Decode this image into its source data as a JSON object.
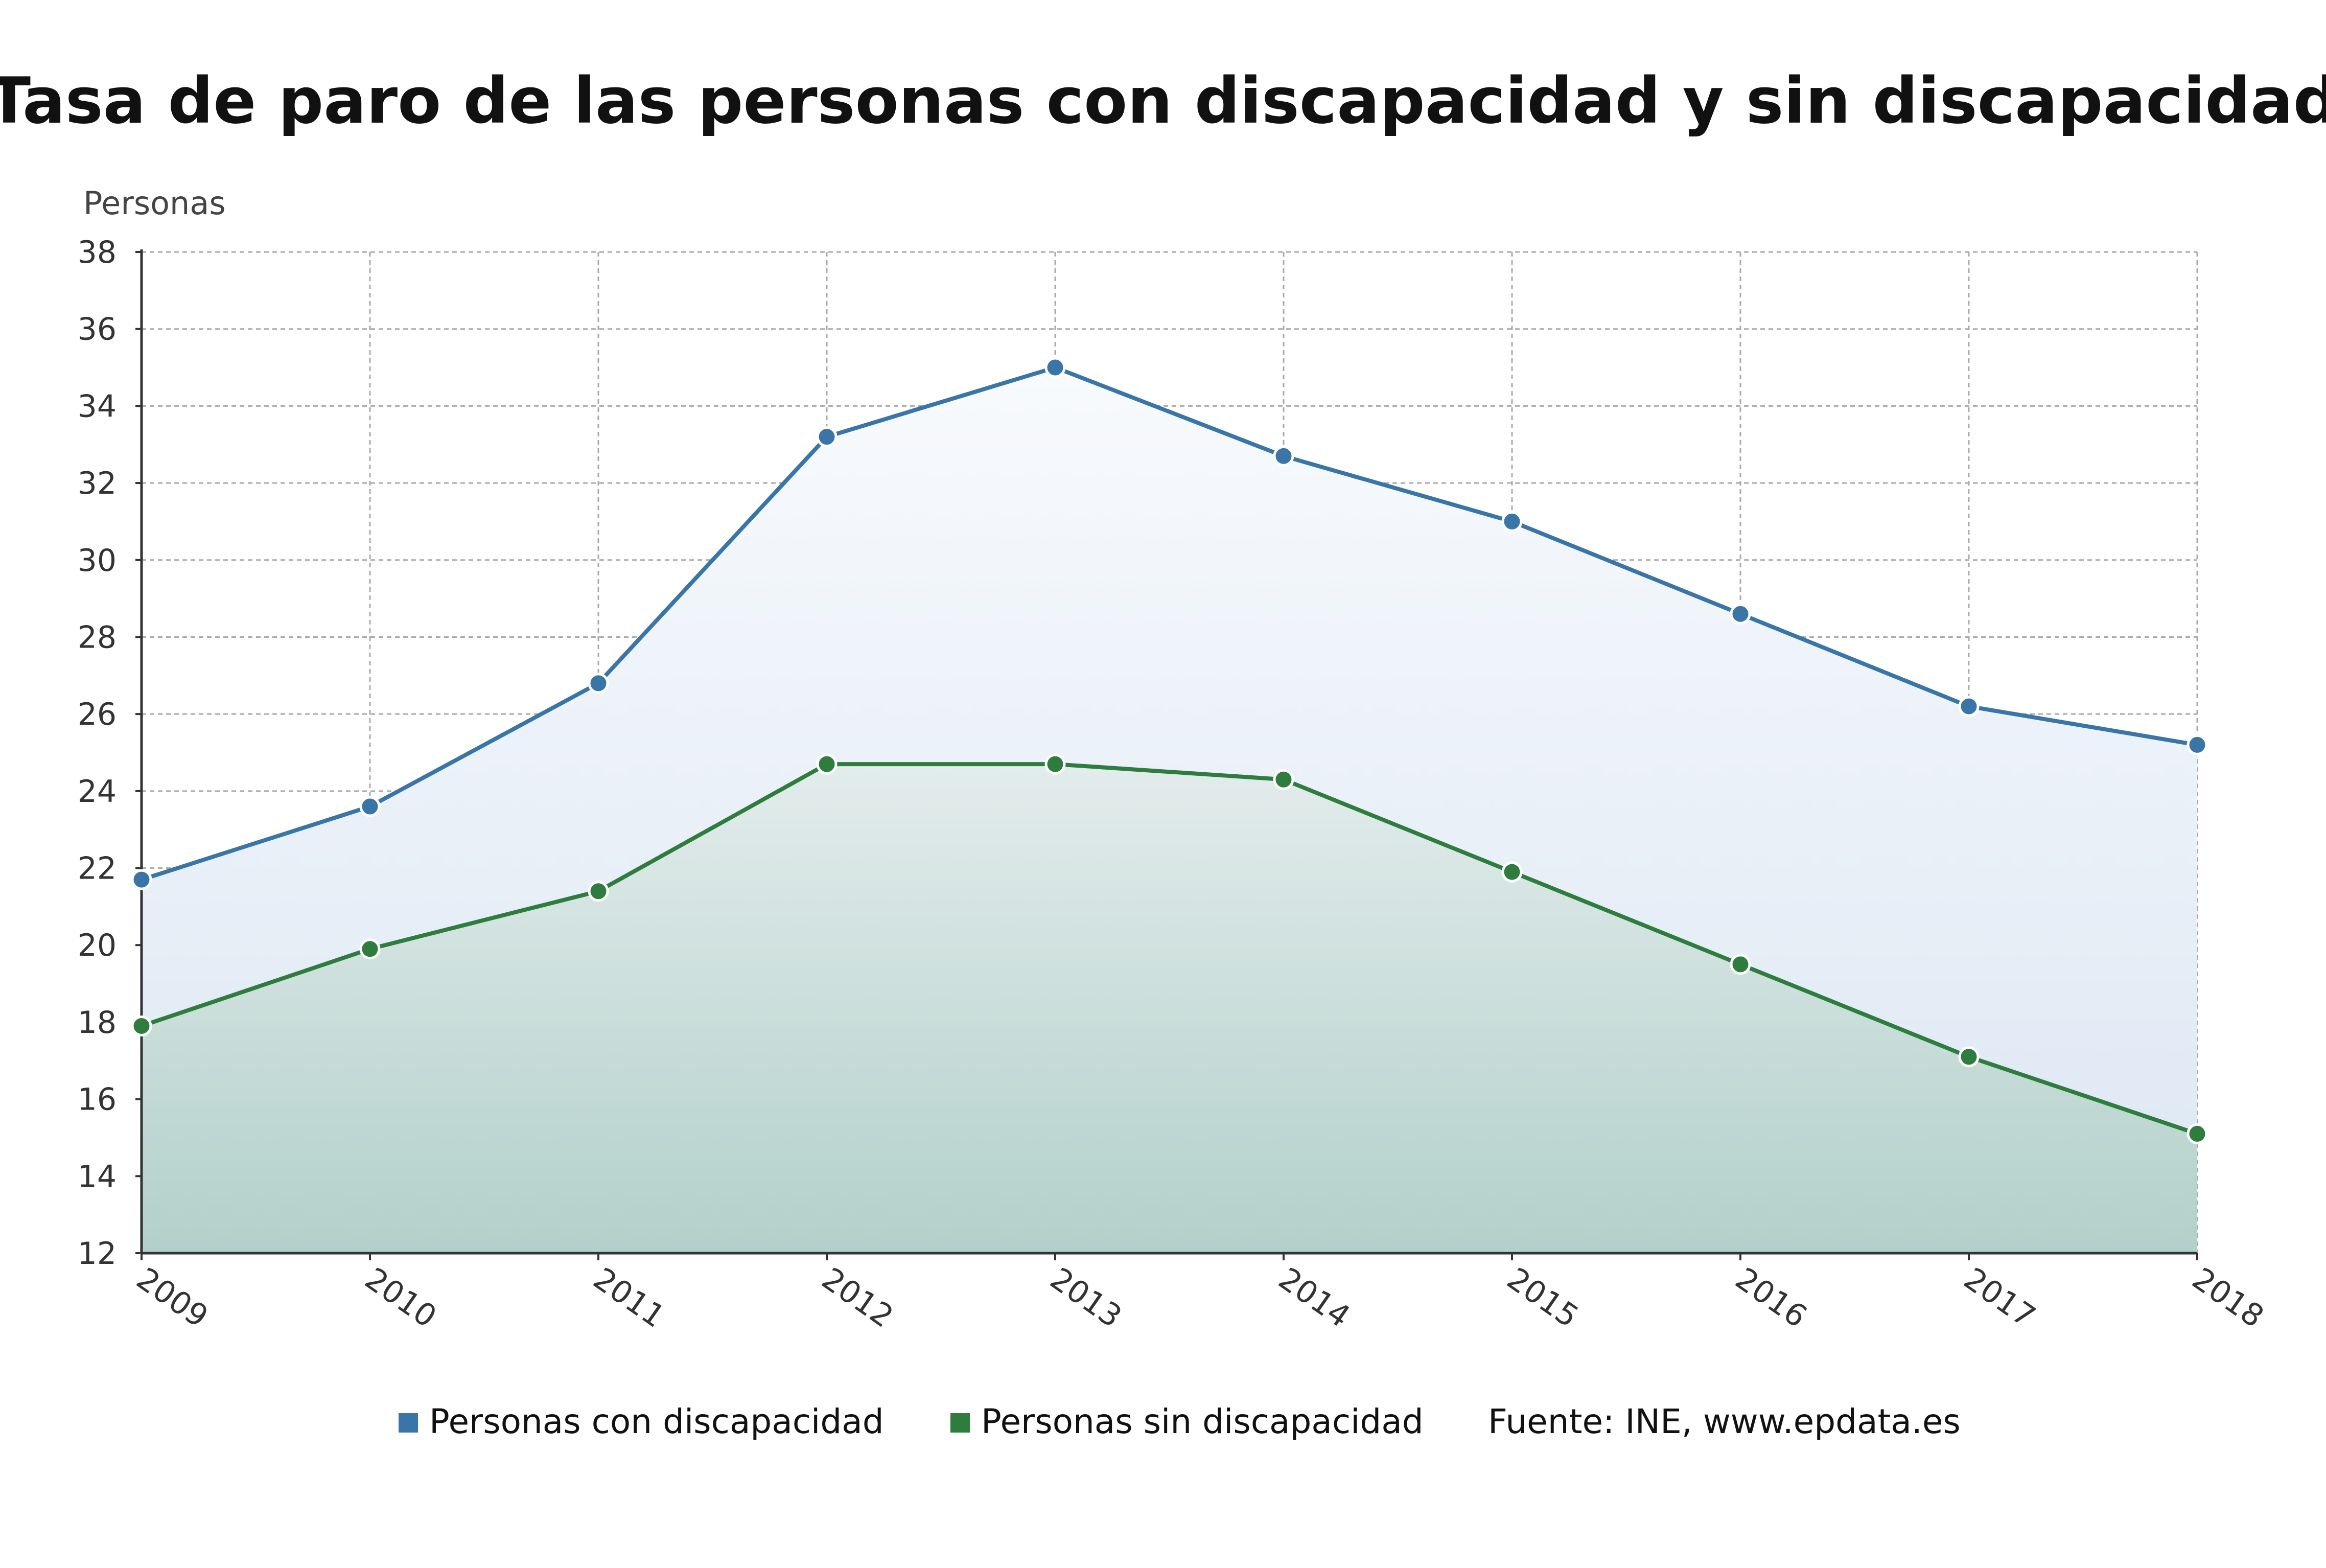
{
  "chart_data": {
    "type": "area",
    "title": "Tasa de paro de las personas con discapacidad y sin discapacidad",
    "ylabel": "Personas",
    "xlabel": "",
    "x": [
      "2009",
      "2010",
      "2011",
      "2012",
      "2013",
      "2014",
      "2015",
      "2016",
      "2017",
      "2018"
    ],
    "y_ticks": [
      "12",
      "14",
      "16",
      "18",
      "20",
      "22",
      "24",
      "26",
      "28",
      "30",
      "32",
      "34",
      "36",
      "38"
    ],
    "ylim": [
      12,
      38
    ],
    "grid": true,
    "legend_position": "bottom",
    "series": [
      {
        "name": "Personas con discapacidad",
        "color": "#3a75a8",
        "values": [
          21.7,
          23.6,
          26.8,
          33.2,
          35.0,
          32.7,
          31.0,
          28.6,
          26.2,
          25.2
        ]
      },
      {
        "name": "Personas sin discapacidad",
        "color": "#2e7d3e",
        "values": [
          17.9,
          19.9,
          21.4,
          24.7,
          24.7,
          24.3,
          21.9,
          19.5,
          17.1,
          15.1
        ]
      }
    ],
    "source": "Fuente: INE, www.epdata.es"
  }
}
